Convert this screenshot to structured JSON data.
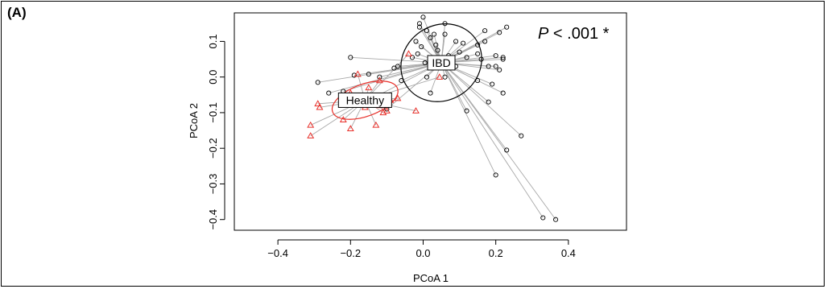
{
  "panel_label": "(A)",
  "annotation": {
    "italic": "P",
    "rest": " < .001 *"
  },
  "chart_data": {
    "type": "scatter",
    "title": "",
    "xlabel": "PCoA 1",
    "ylabel": "PCoA 2",
    "xlim": [
      -0.52,
      0.56
    ],
    "ylim": [
      -0.43,
      0.18
    ],
    "xticks": [
      -0.4,
      -0.2,
      0.0,
      0.2,
      0.4
    ],
    "xtick_labels": [
      "−0.4",
      "−0.2",
      "0.0",
      "0.2",
      "0.4"
    ],
    "yticks": [
      0.1,
      0.0,
      -0.1,
      -0.2,
      -0.3,
      -0.4
    ],
    "ytick_labels": [
      "0.1",
      "0.0",
      "−0.1",
      "−0.2",
      "−0.3",
      "−0.4"
    ],
    "groups": [
      {
        "name": "IBD",
        "color": "#000000",
        "marker": "circle",
        "centroid": [
          0.05,
          0.04
        ],
        "ellipse": {
          "rx": 0.115,
          "ry": 0.105,
          "angle_deg": -35
        },
        "points": [
          [
            -0.29,
            -0.015
          ],
          [
            -0.26,
            -0.045
          ],
          [
            -0.2,
            0.055
          ],
          [
            -0.22,
            -0.04
          ],
          [
            -0.19,
            0.005
          ],
          [
            -0.15,
            0.008
          ],
          [
            -0.12,
            0.0
          ],
          [
            -0.08,
            0.025
          ],
          [
            -0.07,
            0.03
          ],
          [
            -0.06,
            -0.01
          ],
          [
            -0.14,
            -0.06
          ],
          [
            -0.1,
            -0.09
          ],
          [
            -0.03,
            0.055
          ],
          [
            -0.02,
            0.1
          ],
          [
            -0.015,
            0.065
          ],
          [
            -0.01,
            0.14
          ],
          [
            -0.005,
            0.085
          ],
          [
            0.005,
            0.04
          ],
          [
            0.01,
            0.0
          ],
          [
            0.02,
            -0.045
          ],
          [
            -0.01,
            0.15
          ],
          [
            0.0,
            0.168
          ],
          [
            0.01,
            0.13
          ],
          [
            0.02,
            0.11
          ],
          [
            0.035,
            0.09
          ],
          [
            0.04,
            0.075
          ],
          [
            0.06,
            0.15
          ],
          [
            0.06,
            0.12
          ],
          [
            0.07,
            0.06
          ],
          [
            0.08,
            0.045
          ],
          [
            0.09,
            0.1
          ],
          [
            0.11,
            0.095
          ],
          [
            0.12,
            0.055
          ],
          [
            0.1,
            0.07
          ],
          [
            0.15,
            0.09
          ],
          [
            0.15,
            0.065
          ],
          [
            0.16,
            0.05
          ],
          [
            0.17,
            0.13
          ],
          [
            0.17,
            0.1
          ],
          [
            0.18,
            0.03
          ],
          [
            0.15,
            -0.01
          ],
          [
            0.19,
            -0.02
          ],
          [
            0.2,
            0.06
          ],
          [
            0.22,
            0.05
          ],
          [
            0.22,
            0.055
          ],
          [
            0.21,
            0.125
          ],
          [
            0.23,
            0.14
          ],
          [
            0.21,
            0.02
          ],
          [
            0.2,
            0.03
          ],
          [
            0.22,
            -0.045
          ],
          [
            0.12,
            -0.095
          ],
          [
            0.18,
            -0.07
          ],
          [
            0.27,
            -0.165
          ],
          [
            0.23,
            -0.205
          ],
          [
            0.2,
            -0.275
          ],
          [
            0.33,
            -0.395
          ],
          [
            0.365,
            -0.4
          ],
          [
            0.09,
            0.03
          ],
          [
            0.06,
            0.0
          ],
          [
            0.03,
            0.12
          ]
        ]
      },
      {
        "name": "Healthy",
        "color": "#e8302a",
        "marker": "triangle",
        "centroid": [
          -0.16,
          -0.065
        ],
        "ellipse": {
          "rx": 0.095,
          "ry": 0.045,
          "angle_deg": -20
        },
        "points": [
          [
            -0.31,
            -0.135
          ],
          [
            -0.31,
            -0.165
          ],
          [
            -0.29,
            -0.075
          ],
          [
            -0.285,
            -0.085
          ],
          [
            -0.22,
            -0.12
          ],
          [
            -0.2,
            -0.145
          ],
          [
            -0.18,
            0.008
          ],
          [
            -0.2,
            -0.045
          ],
          [
            -0.15,
            -0.03
          ],
          [
            -0.14,
            -0.055
          ],
          [
            -0.13,
            -0.135
          ],
          [
            -0.12,
            -0.01
          ],
          [
            -0.11,
            -0.1
          ],
          [
            -0.1,
            -0.095
          ],
          [
            -0.09,
            -0.065
          ],
          [
            -0.12,
            -0.08
          ],
          [
            -0.02,
            -0.095
          ],
          [
            -0.04,
            0.065
          ],
          [
            0.045,
            0.0
          ],
          [
            -0.07,
            -0.06
          ],
          [
            -0.16,
            -0.085
          ]
        ]
      }
    ]
  }
}
